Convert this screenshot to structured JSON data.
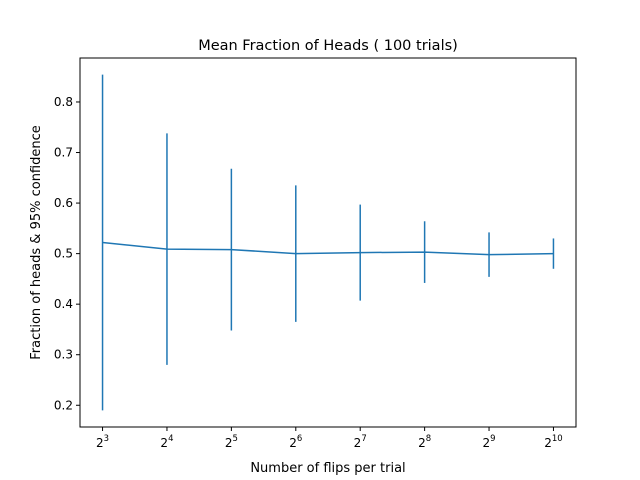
{
  "chart_data": {
    "type": "line",
    "title": "Mean Fraction of Heads ( 100 trials)",
    "xlabel": "Number of flips per trial",
    "ylabel": "Fraction of heads & 95% confidence",
    "x_scale": "log2",
    "x": [
      8,
      16,
      32,
      64,
      128,
      256,
      512,
      1024
    ],
    "x_tick_labels": [
      {
        "base": "2",
        "exp": "3"
      },
      {
        "base": "2",
        "exp": "4"
      },
      {
        "base": "2",
        "exp": "5"
      },
      {
        "base": "2",
        "exp": "6"
      },
      {
        "base": "2",
        "exp": "7"
      },
      {
        "base": "2",
        "exp": "8"
      },
      {
        "base": "2",
        "exp": "9"
      },
      {
        "base": "2",
        "exp": "10"
      }
    ],
    "series": [
      {
        "values": [
          0.522,
          0.509,
          0.508,
          0.5,
          0.502,
          0.503,
          0.498,
          0.5
        ],
        "error": [
          0.332,
          0.229,
          0.16,
          0.135,
          0.095,
          0.061,
          0.044,
          0.03
        ],
        "color": "#1f77b4"
      }
    ],
    "yticks": [
      0.2,
      0.3,
      0.4,
      0.5,
      0.6,
      0.7,
      0.8
    ],
    "ytick_labels": [
      "0.2",
      "0.3",
      "0.4",
      "0.5",
      "0.6",
      "0.7",
      "0.8"
    ],
    "ylim": [
      0.157,
      0.887
    ],
    "xlim_exp": [
      2.65,
      10.35
    ],
    "grid": false
  }
}
